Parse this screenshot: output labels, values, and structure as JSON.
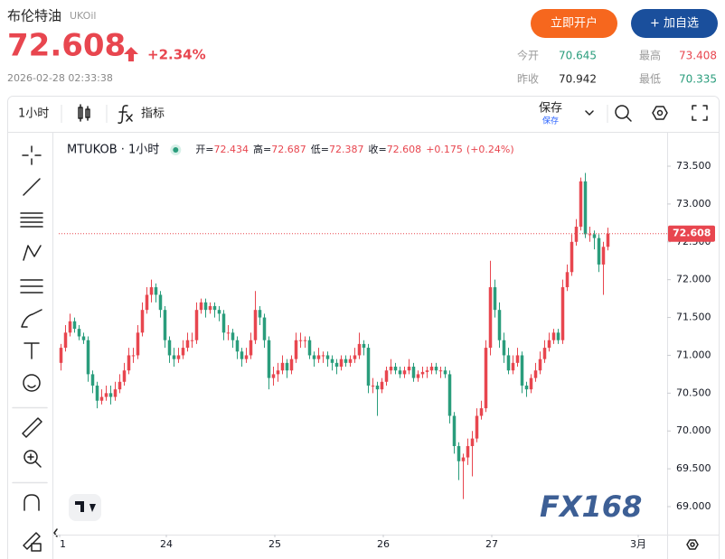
{
  "header": {
    "title": "布伦特油",
    "symbol": "UKOil",
    "price": "72.608",
    "change": "+2.34%",
    "datetime": "2026-02-28 02:33:38",
    "buttons": [
      "立即开户",
      "+ 加自选"
    ],
    "stats": [
      {
        "label": "今开",
        "value": "70.645",
        "color": "#2a9d7c"
      },
      {
        "label": "最高",
        "value": "73.408",
        "color": "#e8464f"
      },
      {
        "label": "昨收",
        "value": "70.942",
        "color": "#222222"
      },
      {
        "label": "最低",
        "value": "70.335",
        "color": "#2a9d7c"
      }
    ]
  },
  "toolbar": {
    "interval": "1小时",
    "indicators": "指标",
    "save": "保存",
    "save_sub": "保存"
  },
  "chart_data": {
    "type": "candlestick",
    "symbol_label": "MTUKOB · 1小时",
    "legend": {
      "labels": [
        "开=",
        "高=",
        "低=",
        "收="
      ],
      "change": "+0.175",
      "change_pct": "(+0.24%)"
    },
    "watermark": "FX168",
    "up_color": "#e8464f",
    "down_color": "#2a9d7c",
    "ylim": [
      68.63,
      73.93
    ],
    "yticks": [
      {
        "value": 73.5,
        "label": "73.500"
      },
      {
        "value": 73,
        "label": "73.000"
      },
      {
        "value": 72.5,
        "label": "72.500"
      },
      {
        "value": 72,
        "label": "72.000"
      },
      {
        "value": 71.5,
        "label": "71.500"
      },
      {
        "value": 71,
        "label": "71.000"
      },
      {
        "value": 70.5,
        "label": "70.500"
      },
      {
        "value": 70,
        "label": "70.000"
      },
      {
        "value": 69.5,
        "label": "69.500"
      },
      {
        "value": 69,
        "label": "69.000"
      }
    ],
    "xlim": [
      0,
      134.6
    ],
    "xticks": [
      {
        "value": 0.2,
        "label": "1"
      },
      {
        "value": 23.8,
        "label": "24"
      },
      {
        "value": 47.8,
        "label": "25"
      },
      {
        "value": 71.8,
        "label": "26"
      },
      {
        "value": 95.8,
        "label": "27"
      },
      {
        "value": 128.2,
        "label": "3月"
      }
    ],
    "candles": [
      [
        70.9,
        71.15,
        70.8,
        71.1
      ],
      [
        71.1,
        71.4,
        71.05,
        71.3
      ],
      [
        71.3,
        71.55,
        71.25,
        71.45
      ],
      [
        71.45,
        71.5,
        71.3,
        71.35
      ],
      [
        71.35,
        71.4,
        71.2,
        71.25
      ],
      [
        71.25,
        71.3,
        71.15,
        71.2
      ],
      [
        71.2,
        71.25,
        70.65,
        70.75
      ],
      [
        70.75,
        70.8,
        70.5,
        70.6
      ],
      [
        70.6,
        70.65,
        70.3,
        70.4
      ],
      [
        70.4,
        70.55,
        70.35,
        70.45
      ],
      [
        70.45,
        70.6,
        70.4,
        70.5
      ],
      [
        70.5,
        70.6,
        70.35,
        70.45
      ],
      [
        70.45,
        70.65,
        70.4,
        70.55
      ],
      [
        70.55,
        70.75,
        70.5,
        70.65
      ],
      [
        70.65,
        70.9,
        70.6,
        70.8
      ],
      [
        70.8,
        71.1,
        70.75,
        71.0
      ],
      [
        71.0,
        71.1,
        70.9,
        71.0
      ],
      [
        71.0,
        71.4,
        70.95,
        71.3
      ],
      [
        71.3,
        71.7,
        71.25,
        71.6
      ],
      [
        71.6,
        71.9,
        71.55,
        71.8
      ],
      [
        71.8,
        72.0,
        71.7,
        71.9
      ],
      [
        71.9,
        71.95,
        71.7,
        71.8
      ],
      [
        71.8,
        71.85,
        71.5,
        71.6
      ],
      [
        71.6,
        71.65,
        71.1,
        71.2
      ],
      [
        71.2,
        71.25,
        70.9,
        71.0
      ],
      [
        71.0,
        71.1,
        70.85,
        70.95
      ],
      [
        70.95,
        71.1,
        70.9,
        71.0
      ],
      [
        71.0,
        71.2,
        70.95,
        71.1
      ],
      [
        71.1,
        71.3,
        71.05,
        71.2
      ],
      [
        71.2,
        71.3,
        71.1,
        71.2
      ],
      [
        71.2,
        71.7,
        71.15,
        71.6
      ],
      [
        71.6,
        71.75,
        71.55,
        71.7
      ],
      [
        71.7,
        71.75,
        71.5,
        71.6
      ],
      [
        71.6,
        71.7,
        71.55,
        71.65
      ],
      [
        71.65,
        71.7,
        71.5,
        71.6
      ],
      [
        71.6,
        71.65,
        71.45,
        71.55
      ],
      [
        71.55,
        71.6,
        71.2,
        71.3
      ],
      [
        71.3,
        71.4,
        71.2,
        71.3
      ],
      [
        71.3,
        71.35,
        71.1,
        71.2
      ],
      [
        71.2,
        71.25,
        70.95,
        71.05
      ],
      [
        71.05,
        71.1,
        70.85,
        70.95
      ],
      [
        70.95,
        71.1,
        70.9,
        71.0
      ],
      [
        71.0,
        71.3,
        70.95,
        71.2
      ],
      [
        71.2,
        71.85,
        71.15,
        71.6
      ],
      [
        71.6,
        71.65,
        71.4,
        71.5
      ],
      [
        71.5,
        71.55,
        71.1,
        71.2
      ],
      [
        71.2,
        71.25,
        70.55,
        70.7
      ],
      [
        70.7,
        70.85,
        70.6,
        70.75
      ],
      [
        70.75,
        70.9,
        70.65,
        70.8
      ],
      [
        70.8,
        71.0,
        70.75,
        70.9
      ],
      [
        70.9,
        70.95,
        70.7,
        70.8
      ],
      [
        70.8,
        71.0,
        70.75,
        70.95
      ],
      [
        70.95,
        71.3,
        70.9,
        71.2
      ],
      [
        71.2,
        71.3,
        71.1,
        71.2
      ],
      [
        71.2,
        71.25,
        71.1,
        71.2
      ],
      [
        71.2,
        71.25,
        70.95,
        71.0
      ],
      [
        71.0,
        71.05,
        70.85,
        70.95
      ],
      [
        70.95,
        71.1,
        70.9,
        71.0
      ],
      [
        71.0,
        71.05,
        70.9,
        71.0
      ],
      [
        71.0,
        71.05,
        70.85,
        70.95
      ],
      [
        70.95,
        71.0,
        70.8,
        70.9
      ],
      [
        70.9,
        70.95,
        70.75,
        70.85
      ],
      [
        70.85,
        71.0,
        70.8,
        70.95
      ],
      [
        70.95,
        71.0,
        70.85,
        70.9
      ],
      [
        70.9,
        71.0,
        70.85,
        70.95
      ],
      [
        70.95,
        71.1,
        70.9,
        71.0
      ],
      [
        71.0,
        71.3,
        70.95,
        71.15
      ],
      [
        71.15,
        71.2,
        71.0,
        71.1
      ],
      [
        71.1,
        71.15,
        70.5,
        70.6
      ],
      [
        70.6,
        70.7,
        70.5,
        70.6
      ],
      [
        70.6,
        70.65,
        70.2,
        70.55
      ],
      [
        70.55,
        70.7,
        70.5,
        70.65
      ],
      [
        70.65,
        70.85,
        70.6,
        70.8
      ],
      [
        70.8,
        70.95,
        70.75,
        70.85
      ],
      [
        70.85,
        70.9,
        70.75,
        70.8
      ],
      [
        70.8,
        70.85,
        70.7,
        70.75
      ],
      [
        70.75,
        70.85,
        70.7,
        70.8
      ],
      [
        70.8,
        70.95,
        70.75,
        70.85
      ],
      [
        70.85,
        70.9,
        70.65,
        70.7
      ],
      [
        70.7,
        70.8,
        70.65,
        70.75
      ],
      [
        70.75,
        70.85,
        70.7,
        70.78
      ],
      [
        70.78,
        70.85,
        70.7,
        70.8
      ],
      [
        70.8,
        70.9,
        70.75,
        70.85
      ],
      [
        70.85,
        70.9,
        70.75,
        70.8
      ],
      [
        70.8,
        70.85,
        70.7,
        70.8
      ],
      [
        70.8,
        70.85,
        70.7,
        70.75
      ],
      [
        70.75,
        70.8,
        70.1,
        70.2
      ],
      [
        70.2,
        70.25,
        69.7,
        69.8
      ],
      [
        69.8,
        69.85,
        69.35,
        69.6
      ],
      [
        69.6,
        69.7,
        69.1,
        69.65
      ],
      [
        69.65,
        69.9,
        69.55,
        69.8
      ],
      [
        69.8,
        70.0,
        69.4,
        69.9
      ],
      [
        69.9,
        70.3,
        69.85,
        70.2
      ],
      [
        70.2,
        70.4,
        70.15,
        70.3
      ],
      [
        70.3,
        71.2,
        70.25,
        71.1
      ],
      [
        71.1,
        72.25,
        71.0,
        71.9
      ],
      [
        71.9,
        72.0,
        71.5,
        71.6
      ],
      [
        71.6,
        71.7,
        71.1,
        71.2
      ],
      [
        71.2,
        71.3,
        70.9,
        71.0
      ],
      [
        71.0,
        71.1,
        70.75,
        70.8
      ],
      [
        70.8,
        71.0,
        70.75,
        70.9
      ],
      [
        70.9,
        71.1,
        70.85,
        71.0
      ],
      [
        71.0,
        71.05,
        70.5,
        70.6
      ],
      [
        70.6,
        70.65,
        70.45,
        70.55
      ],
      [
        70.55,
        70.75,
        70.5,
        70.7
      ],
      [
        70.7,
        70.9,
        70.65,
        70.8
      ],
      [
        70.8,
        71.05,
        70.75,
        70.95
      ],
      [
        70.95,
        71.2,
        70.9,
        71.1
      ],
      [
        71.1,
        71.3,
        71.05,
        71.2
      ],
      [
        71.2,
        71.35,
        71.15,
        71.3
      ],
      [
        71.3,
        71.35,
        71.15,
        71.2
      ],
      [
        71.2,
        72.0,
        71.15,
        71.9
      ],
      [
        71.9,
        72.2,
        71.85,
        72.1
      ],
      [
        72.1,
        72.6,
        72.05,
        72.5
      ],
      [
        72.5,
        72.8,
        72.45,
        72.7
      ],
      [
        72.7,
        73.35,
        72.65,
        73.3
      ],
      [
        73.3,
        73.41,
        72.55,
        72.6
      ],
      [
        72.6,
        72.7,
        72.5,
        72.6
      ],
      [
        72.6,
        72.65,
        72.4,
        72.55
      ],
      [
        72.55,
        72.6,
        72.1,
        72.2
      ],
      [
        72.2,
        72.5,
        71.8,
        72.434
      ],
      [
        72.434,
        72.687,
        72.387,
        72.608
      ]
    ]
  }
}
